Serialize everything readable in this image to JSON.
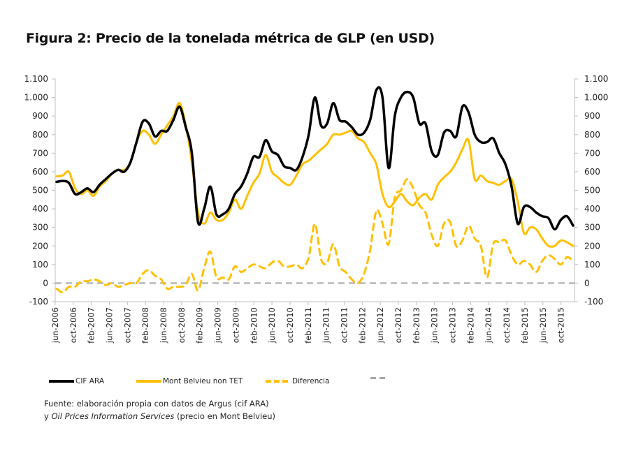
{
  "title": "Figura 2: Precio de la tonelada métrica de GLP (en USD)",
  "legend": [
    {
      "label": "CIF ARA",
      "color": "#000000",
      "style": "solid"
    },
    {
      "label": "Mont Belvieu non TET",
      "color": "#FFC000",
      "style": "solid"
    },
    {
      "label": "Diferencia",
      "color": "#FFC000",
      "style": "dashed"
    },
    {
      "label": "",
      "color": "#A6A6A6",
      "style": "dashed"
    }
  ],
  "source": {
    "line1": "Fuente: elaboración propia con datos de Argus (cif ARA)",
    "line2_prefix": "y ",
    "line2_italic": "Oil Prices Information Services",
    "line2_suffix": " (precio en Mont Belvieu)"
  },
  "chart_data": {
    "type": "line",
    "title": "Figura 2: Precio de la tonelada métrica de GLP (en USD)",
    "xlabel": "",
    "ylabel": "",
    "ylim": [
      -100,
      1100
    ],
    "yticks": [
      -100,
      0,
      100,
      200,
      300,
      400,
      500,
      600,
      700,
      800,
      900,
      1000,
      1100
    ],
    "ytick_labels": [
      "-100",
      "0",
      "100",
      "200",
      "300",
      "400",
      "500",
      "600",
      "700",
      "800",
      "900",
      "1.000",
      "1.100"
    ],
    "y2ticks": [
      -100,
      0,
      100,
      200,
      300,
      400,
      500,
      600,
      700,
      800,
      900,
      1000,
      1100
    ],
    "y2tick_labels": [
      "-100",
      "0",
      "100",
      "200",
      "300",
      "400",
      "500",
      "600",
      "700",
      "800",
      "900",
      "1.000",
      "1.100"
    ],
    "xtick_labels": [
      "jun-2006",
      "oct-2006",
      "feb-2007",
      "jun-2007",
      "oct-2007",
      "feb-2008",
      "jun-2008",
      "oct-2008",
      "feb-2009",
      "jun-2009",
      "oct-2009",
      "feb-2010",
      "jun-2010",
      "oct-2010",
      "feb-2011",
      "jun-2011",
      "oct-2011",
      "feb-2012",
      "jun-2012",
      "oct-2012",
      "feb-2013",
      "jun-2013",
      "oct-2013",
      "feb-2014",
      "jun-2014",
      "oct-2014",
      "feb-2015",
      "jun-2015",
      "oct-2015"
    ],
    "x_start": "jun-2006",
    "x_step_months": 2,
    "grid": false,
    "legend_position": "bottom",
    "series": [
      {
        "name": "CIF ARA",
        "color": "#000000",
        "style": "solid",
        "values": [
          545,
          550,
          540,
          480,
          490,
          510,
          490,
          530,
          560,
          590,
          610,
          600,
          650,
          760,
          870,
          860,
          790,
          820,
          820,
          880,
          950,
          840,
          700,
          330,
          400,
          520,
          370,
          370,
          400,
          480,
          520,
          590,
          680,
          680,
          770,
          710,
          690,
          630,
          620,
          610,
          680,
          800,
          1000,
          850,
          860,
          970,
          880,
          870,
          840,
          800,
          810,
          880,
          1040,
          1000,
          620,
          900,
          1000,
          1030,
          1000,
          860,
          860,
          710,
          690,
          810,
          820,
          790,
          950,
          920,
          800,
          760,
          760,
          780,
          700,
          640,
          520,
          320,
          410,
          410,
          380,
          360,
          350,
          290,
          340,
          360,
          310
        ]
      },
      {
        "name": "Mont Belvieu non TET",
        "color": "#FFC000",
        "style": "solid",
        "values": [
          575,
          580,
          600,
          510,
          480,
          500,
          470,
          520,
          550,
          590,
          610,
          610,
          650,
          760,
          820,
          800,
          750,
          800,
          850,
          900,
          970,
          850,
          650,
          380,
          320,
          380,
          340,
          340,
          380,
          450,
          400,
          470,
          540,
          590,
          690,
          600,
          570,
          540,
          530,
          580,
          640,
          660,
          690,
          720,
          750,
          800,
          800,
          810,
          820,
          780,
          760,
          700,
          640,
          480,
          410,
          440,
          480,
          440,
          420,
          460,
          480,
          450,
          530,
          570,
          600,
          650,
          720,
          770,
          560,
          580,
          550,
          540,
          530,
          550,
          560,
          440,
          270,
          300,
          290,
          240,
          200,
          200,
          230,
          220,
          200
        ]
      },
      {
        "name": "Diferencia",
        "color": "#FFC000",
        "style": "dashed",
        "values": [
          -30,
          -50,
          -20,
          -20,
          10,
          10,
          20,
          10,
          -10,
          0,
          -20,
          -10,
          0,
          0,
          50,
          70,
          40,
          20,
          -30,
          -20,
          -20,
          -10,
          50,
          -40,
          80,
          170,
          30,
          30,
          20,
          90,
          60,
          80,
          100,
          90,
          80,
          110,
          120,
          90,
          90,
          100,
          80,
          140,
          320,
          130,
          110,
          210,
          90,
          60,
          20,
          0,
          50,
          180,
          390,
          320,
          210,
          460,
          500,
          560,
          510,
          420,
          380,
          260,
          200,
          320,
          330,
          200,
          230,
          310,
          240,
          200,
          30,
          210,
          220,
          230,
          150,
          100,
          120,
          100,
          60,
          120,
          150,
          130,
          100,
          140,
          120
        ]
      },
      {
        "name": "cero",
        "color": "#A6A6A6",
        "style": "dashed",
        "values": "constant 0 across the range"
      }
    ]
  }
}
